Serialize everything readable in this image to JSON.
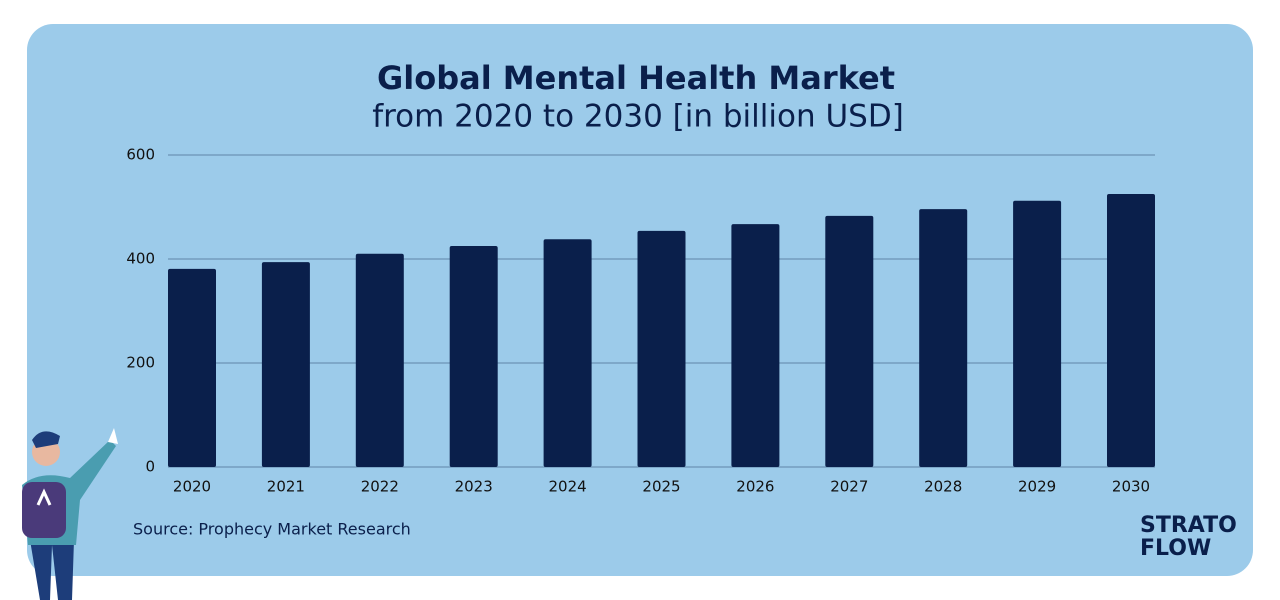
{
  "chart_data": {
    "type": "bar",
    "title": "Global Mental Health Market",
    "subtitle": "from 2020 to 2030 [in billion USD]",
    "categories": [
      "2020",
      "2021",
      "2022",
      "2023",
      "2024",
      "2025",
      "2026",
      "2027",
      "2028",
      "2029",
      "2030"
    ],
    "values": [
      381,
      394,
      410,
      425,
      438,
      454,
      467,
      483,
      496,
      512,
      525
    ],
    "color": "#0a1f4b",
    "ylim": [
      0,
      600
    ],
    "yticks": [
      0,
      200,
      400,
      600
    ],
    "grid": true
  },
  "source": "Source: Prophecy Market Research",
  "brand": [
    "STRATO",
    "FLOW"
  ]
}
